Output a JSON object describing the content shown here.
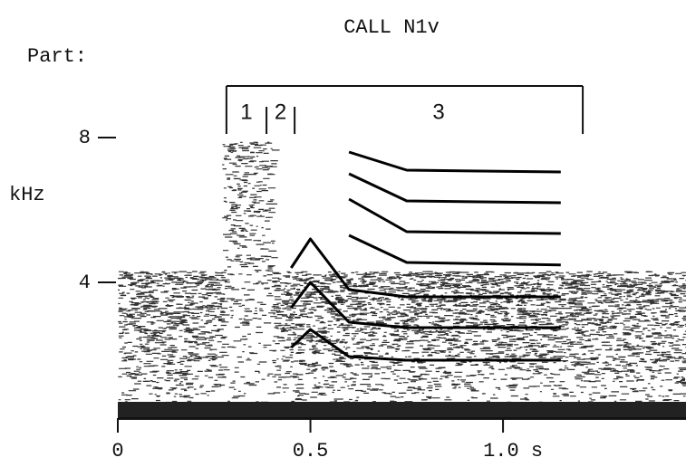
{
  "chart_data": {
    "type": "line",
    "title": "CALL N1v",
    "ylabel": "kHz",
    "parts_label": "Part:",
    "parts": [
      {
        "label": "1",
        "start": 0.282,
        "end": 0.386
      },
      {
        "label": "2",
        "start": 0.386,
        "end": 0.459
      },
      {
        "label": "3",
        "start": 0.459,
        "end": 1.207
      }
    ],
    "x": [
      0.45,
      0.5,
      0.6,
      0.75,
      1.15
    ],
    "series": [
      {
        "color": "#000",
        "values": [
          2.2,
          2.7,
          1.95,
          1.85,
          1.85
        ]
      },
      {
        "color": "#000",
        "values": [
          3.3,
          4.0,
          2.9,
          2.75,
          2.75
        ]
      },
      {
        "color": "#000",
        "values": [
          4.4,
          5.2,
          3.8,
          3.6,
          3.6
        ]
      },
      {
        "color": "#000",
        "values": [
          null,
          null,
          5.3,
          4.55,
          4.48
        ]
      },
      {
        "color": "#000",
        "values": [
          null,
          null,
          6.3,
          5.4,
          5.35
        ]
      },
      {
        "color": "#000",
        "values": [
          null,
          null,
          7.0,
          6.25,
          6.2
        ]
      },
      {
        "color": "#000",
        "values": [
          null,
          null,
          7.6,
          7.1,
          7.05
        ]
      }
    ],
    "xlim": [
      0,
      1.475
    ],
    "ylim": [
      0,
      8.5
    ],
    "xticks": [
      0,
      0.5,
      {
        "value": 1.0,
        "label": "1.0 s"
      }
    ],
    "yticks": [
      4,
      8
    ]
  }
}
